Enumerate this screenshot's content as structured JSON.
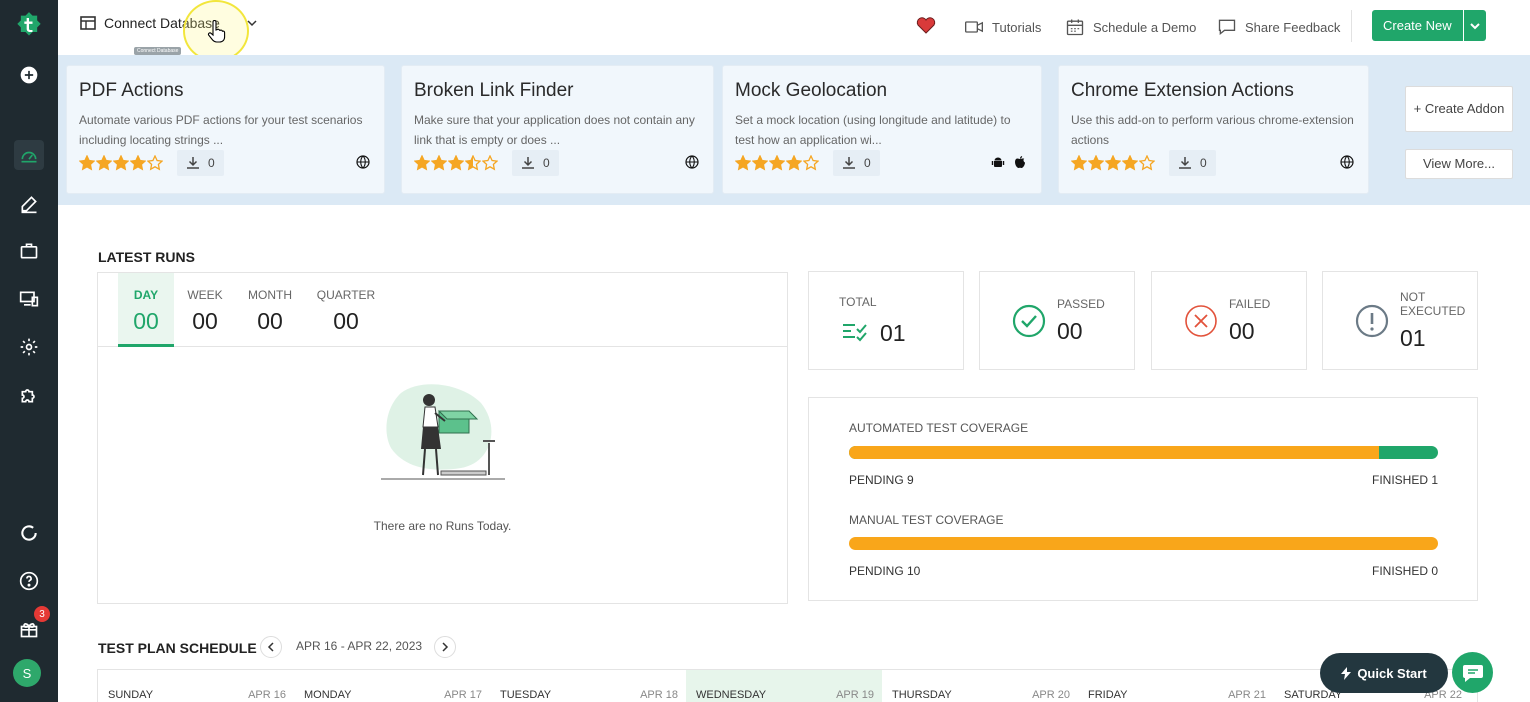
{
  "header": {
    "project_name": "Connect Database",
    "project_tooltip": "Connect Database",
    "tutorials": "Tutorials",
    "schedule_demo": "Schedule a Demo",
    "share_feedback": "Share Feedback",
    "create_new": "Create New"
  },
  "sidebar": {
    "notification_count": "3",
    "user_initial": "S"
  },
  "addons": [
    {
      "title": "PDF Actions",
      "description": "Automate various PDF actions for your test scenarios including locating strings ...",
      "rating": 4,
      "downloads": "0",
      "platforms": [
        "web"
      ]
    },
    {
      "title": "Broken Link Finder",
      "description": "Make sure that your application does not contain any link that is empty or does ...",
      "rating": 3.5,
      "downloads": "0",
      "platforms": [
        "web"
      ]
    },
    {
      "title": "Mock Geolocation",
      "description": "Set a mock location (using longitude and latitude) to test how an application wi...",
      "rating": 4,
      "downloads": "0",
      "platforms": [
        "android",
        "apple"
      ]
    },
    {
      "title": "Chrome Extension Actions",
      "description": "Use this add-on to perform various chrome-extension actions",
      "rating": 4,
      "downloads": "0",
      "platforms": [
        "web"
      ]
    }
  ],
  "addon_actions": {
    "create_addon": "+ Create Addon",
    "view_more": "View More..."
  },
  "latest_runs": {
    "title": "LATEST RUNS",
    "tabs": [
      {
        "label": "DAY",
        "value": "00"
      },
      {
        "label": "WEEK",
        "value": "00"
      },
      {
        "label": "MONTH",
        "value": "00"
      },
      {
        "label": "QUARTER",
        "value": "00"
      }
    ],
    "empty_message": "There are no Runs Today."
  },
  "stats": {
    "total": {
      "label": "TOTAL",
      "value": "01"
    },
    "passed": {
      "label": "PASSED",
      "value": "00"
    },
    "failed": {
      "label": "FAILED",
      "value": "00"
    },
    "not_executed": {
      "label": "NOT EXECUTED",
      "value": "01"
    }
  },
  "coverage": {
    "automated": {
      "label": "AUTOMATED TEST COVERAGE",
      "pending": "PENDING 9",
      "finished": "FINISHED 1",
      "pending_fraction": 0.9
    },
    "manual": {
      "label": "MANUAL TEST COVERAGE",
      "pending": "PENDING 10",
      "finished": "FINISHED 0",
      "pending_fraction": 1.0
    }
  },
  "test_plan": {
    "title": "TEST PLAN SCHEDULE",
    "range": "APR 16 - APR 22, 2023",
    "days": [
      {
        "name": "SUNDAY",
        "date": "APR 16"
      },
      {
        "name": "MONDAY",
        "date": "APR 17"
      },
      {
        "name": "TUESDAY",
        "date": "APR 18"
      },
      {
        "name": "WEDNESDAY",
        "date": "APR 19",
        "today": true
      },
      {
        "name": "THURSDAY",
        "date": "APR 20"
      },
      {
        "name": "FRIDAY",
        "date": "APR 21"
      },
      {
        "name": "SATURDAY",
        "date": "APR 22"
      }
    ]
  },
  "quick_start": "Quick Start",
  "colors": {
    "brand_green": "#20a66a",
    "pending_orange": "#f9a61a",
    "star": "#f5a623"
  }
}
